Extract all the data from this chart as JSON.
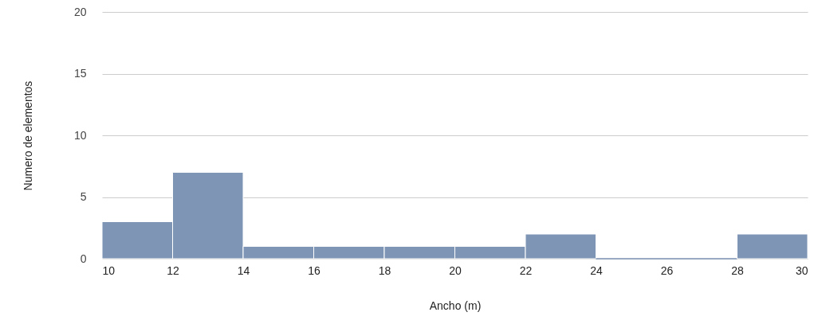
{
  "chart_data": {
    "type": "histogram",
    "xlabel": "Ancho (m)",
    "ylabel": "Numero de elementos",
    "bins": [
      10,
      12,
      14,
      16,
      18,
      20,
      22,
      24,
      26,
      28,
      30
    ],
    "values": [
      3,
      7,
      1,
      1,
      1,
      1,
      2,
      0,
      0,
      2
    ],
    "color": "#7f95b6",
    "xlim": [
      10,
      30
    ],
    "xticks": [
      10,
      12,
      14,
      16,
      18,
      20,
      22,
      24,
      26,
      28,
      30
    ],
    "ylim": [
      0,
      20
    ],
    "yticks": [
      0,
      5,
      10,
      15,
      20
    ],
    "grid": "y"
  }
}
